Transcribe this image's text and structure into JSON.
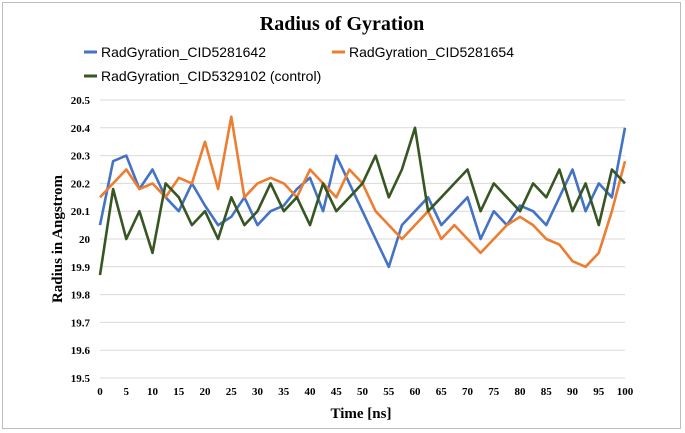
{
  "chart_data": {
    "type": "line",
    "title": "Radius of Gyration",
    "xlabel": "Time [ns]",
    "ylabel": "Radius in Angstrom",
    "xlim": [
      0,
      100
    ],
    "ylim": [
      19.5,
      20.5
    ],
    "xticks": [
      0,
      5,
      10,
      15,
      20,
      25,
      30,
      35,
      40,
      45,
      50,
      55,
      60,
      65,
      70,
      75,
      80,
      85,
      90,
      95,
      100
    ],
    "yticks": [
      19.5,
      19.6,
      19.7,
      19.8,
      19.9,
      20,
      20.1,
      20.2,
      20.3,
      20.4,
      20.5
    ],
    "ytick_labels": [
      "19.5",
      "19.6",
      "19.7",
      "19.8",
      "19.9",
      "20",
      "20.1",
      "20.2",
      "20.3",
      "20.4",
      "20.5"
    ],
    "grid": true,
    "legend_position": "top",
    "series": [
      {
        "name": "RadGyration_CID5281642",
        "color": "#4472c4",
        "x": [
          0,
          2.5,
          5,
          7.5,
          10,
          12.5,
          15,
          17.5,
          20,
          22.5,
          25,
          27.5,
          30,
          32.5,
          35,
          37.5,
          40,
          42.5,
          45,
          47.5,
          50,
          52.5,
          55,
          57.5,
          60,
          62.5,
          65,
          67.5,
          70,
          72.5,
          75,
          77.5,
          80,
          82.5,
          85,
          87.5,
          90,
          92.5,
          95,
          97.5,
          100
        ],
        "values": [
          20.05,
          20.28,
          20.3,
          20.18,
          20.25,
          20.15,
          20.1,
          20.2,
          20.12,
          20.05,
          20.08,
          20.15,
          20.05,
          20.1,
          20.12,
          20.18,
          20.22,
          20.1,
          20.3,
          20.2,
          20.1,
          20.0,
          19.9,
          20.05,
          20.1,
          20.15,
          20.05,
          20.1,
          20.15,
          20.0,
          20.1,
          20.05,
          20.12,
          20.1,
          20.05,
          20.15,
          20.25,
          20.1,
          20.2,
          20.15,
          20.4
        ]
      },
      {
        "name": "RadGyration_CID5281654",
        "color": "#ed7d31",
        "x": [
          0,
          2.5,
          5,
          7.5,
          10,
          12.5,
          15,
          17.5,
          20,
          22.5,
          25,
          27.5,
          30,
          32.5,
          35,
          37.5,
          40,
          42.5,
          45,
          47.5,
          50,
          52.5,
          55,
          57.5,
          60,
          62.5,
          65,
          67.5,
          70,
          72.5,
          75,
          77.5,
          80,
          82.5,
          85,
          87.5,
          90,
          92.5,
          95,
          97.5,
          100
        ],
        "values": [
          20.15,
          20.2,
          20.25,
          20.18,
          20.2,
          20.15,
          20.22,
          20.2,
          20.35,
          20.18,
          20.44,
          20.15,
          20.2,
          20.22,
          20.2,
          20.15,
          20.25,
          20.2,
          20.15,
          20.25,
          20.2,
          20.1,
          20.05,
          20.0,
          20.05,
          20.1,
          20.0,
          20.05,
          20.0,
          19.95,
          20.0,
          20.05,
          20.08,
          20.05,
          20.0,
          19.98,
          19.92,
          19.9,
          19.95,
          20.1,
          20.28
        ]
      },
      {
        "name": "RadGyration_CID5329102 (control)",
        "color": "#375623",
        "x": [
          0,
          2.5,
          5,
          7.5,
          10,
          12.5,
          15,
          17.5,
          20,
          22.5,
          25,
          27.5,
          30,
          32.5,
          35,
          37.5,
          40,
          42.5,
          45,
          47.5,
          50,
          52.5,
          55,
          57.5,
          60,
          62.5,
          65,
          67.5,
          70,
          72.5,
          75,
          77.5,
          80,
          82.5,
          85,
          87.5,
          90,
          92.5,
          95,
          97.5,
          100
        ],
        "values": [
          19.87,
          20.18,
          20.0,
          20.1,
          19.95,
          20.2,
          20.15,
          20.05,
          20.1,
          20.0,
          20.15,
          20.05,
          20.1,
          20.2,
          20.1,
          20.15,
          20.05,
          20.2,
          20.1,
          20.15,
          20.2,
          20.3,
          20.15,
          20.25,
          20.4,
          20.1,
          20.15,
          20.2,
          20.25,
          20.1,
          20.2,
          20.15,
          20.1,
          20.2,
          20.15,
          20.25,
          20.1,
          20.2,
          20.05,
          20.25,
          20.2
        ]
      }
    ]
  }
}
